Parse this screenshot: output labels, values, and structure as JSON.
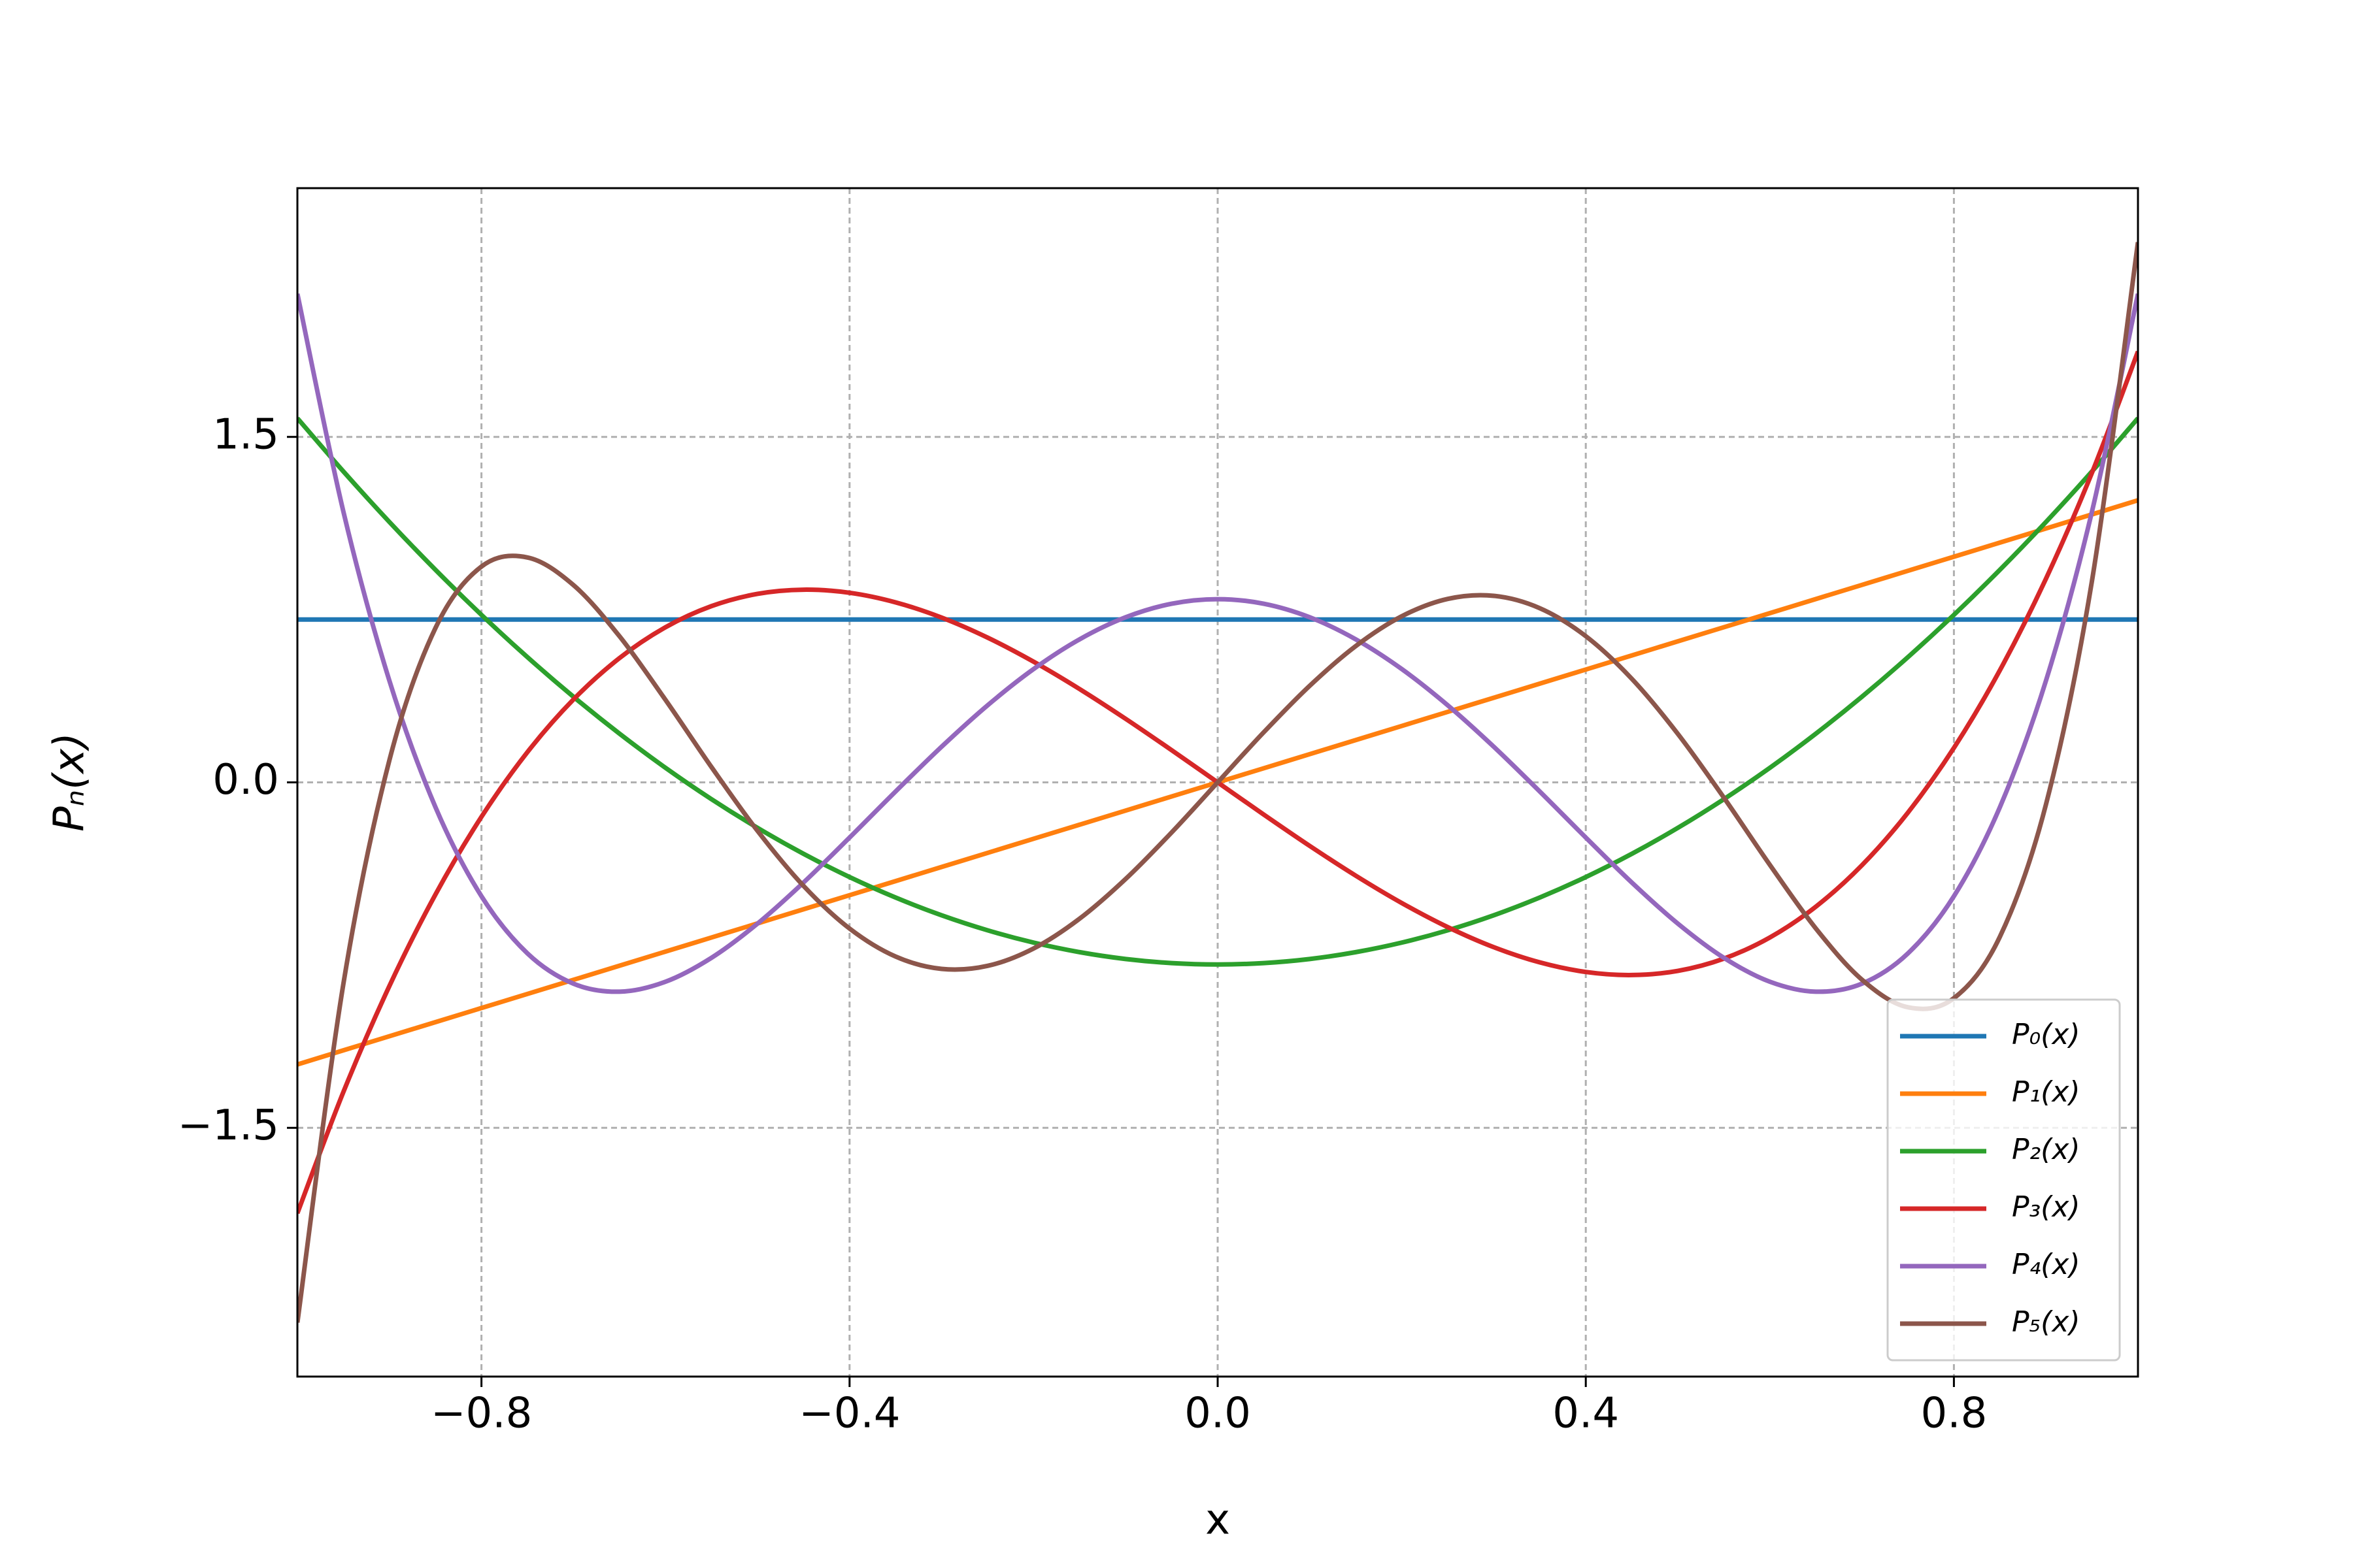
{
  "chart_data": {
    "type": "line",
    "xlabel": "x",
    "ylabel": "Pₙ(x)",
    "xlim": [
      -1,
      1
    ],
    "ylim": [
      -2.58,
      2.58
    ],
    "xticks": [
      {
        "value": -0.8,
        "label": "−0.8"
      },
      {
        "value": -0.4,
        "label": "−0.4"
      },
      {
        "value": 0,
        "label": "0.0"
      },
      {
        "value": 0.4,
        "label": "0.4"
      },
      {
        "value": 0.8,
        "label": "0.8"
      }
    ],
    "yticks": [
      {
        "value": -1.5,
        "label": "−1.5"
      },
      {
        "value": 0,
        "label": "0.0"
      },
      {
        "value": 1.5,
        "label": "1.5"
      }
    ],
    "grid": true,
    "legend": "lower right",
    "x": [
      -1,
      -0.95,
      -0.9,
      -0.85,
      -0.8,
      -0.75,
      -0.7,
      -0.65,
      -0.6,
      -0.55,
      -0.5,
      -0.45,
      -0.4,
      -0.35,
      -0.3,
      -0.25,
      -0.2,
      -0.15,
      -0.1,
      -0.05,
      0,
      0.05,
      0.1,
      0.15,
      0.2,
      0.25,
      0.3,
      0.35,
      0.4,
      0.45,
      0.5,
      0.55,
      0.6,
      0.65,
      0.7,
      0.75,
      0.8,
      0.85,
      0.9,
      0.95,
      1
    ],
    "series": [
      {
        "name": "P₀(x)",
        "color": "#1f77b4",
        "values": [
          0.7071,
          0.7071,
          0.7071,
          0.7071,
          0.7071,
          0.7071,
          0.7071,
          0.7071,
          0.7071,
          0.7071,
          0.7071,
          0.7071,
          0.7071,
          0.7071,
          0.7071,
          0.7071,
          0.7071,
          0.7071,
          0.7071,
          0.7071,
          0.7071,
          0.7071,
          0.7071,
          0.7071,
          0.7071,
          0.7071,
          0.7071,
          0.7071,
          0.7071,
          0.7071,
          0.7071,
          0.7071,
          0.7071,
          0.7071,
          0.7071,
          0.7071,
          0.7071,
          0.7071,
          0.7071,
          0.7071,
          0.7071
        ]
      },
      {
        "name": "P₁(x)",
        "color": "#ff7f0e",
        "values": [
          -1.2247,
          -1.1635,
          -1.1023,
          -1.041,
          -0.9798,
          -0.9186,
          -0.8573,
          -0.7961,
          -0.7348,
          -0.6736,
          -0.6124,
          -0.5511,
          -0.4899,
          -0.4287,
          -0.3674,
          -0.3062,
          -0.2449,
          -0.1837,
          -0.1225,
          -0.0612,
          0,
          0.0612,
          0.1225,
          0.1837,
          0.2449,
          0.3062,
          0.3674,
          0.4287,
          0.4899,
          0.5511,
          0.6124,
          0.6736,
          0.7348,
          0.7961,
          0.8573,
          0.9186,
          0.9798,
          1.041,
          1.1023,
          1.1635,
          1.2247
        ]
      },
      {
        "name": "P₂(x)",
        "color": "#2ca02c",
        "values": [
          1.5811,
          1.3499,
          1.1305,
          0.923,
          0.7273,
          0.5435,
          0.3716,
          0.2115,
          0.0632,
          -0.0731,
          -0.1976,
          -0.3103,
          -0.4111,
          -0.5,
          -0.5771,
          -0.6423,
          -0.6957,
          -0.7372,
          -0.7669,
          -0.7846,
          -0.7906,
          -0.7846,
          -0.7669,
          -0.7372,
          -0.6957,
          -0.6423,
          -0.5771,
          -0.5,
          -0.4111,
          -0.3103,
          -0.1976,
          -0.0731,
          0.0632,
          0.2115,
          0.3716,
          0.5435,
          0.7273,
          0.923,
          1.1305,
          1.3499,
          1.5811
        ]
      },
      {
        "name": "P₃(x)",
        "color": "#d62728",
        "values": [
          -1.8708,
          -1.3441,
          -0.884,
          -0.487,
          -0.1497,
          0.1315,
          0.3601,
          0.5396,
          0.6735,
          0.7653,
          0.8185,
          0.8366,
          0.8232,
          0.7816,
          0.7156,
          0.6285,
          0.5238,
          0.4051,
          0.2759,
          0.1397,
          0,
          -0.1397,
          -0.2759,
          -0.4051,
          -0.5238,
          -0.6285,
          -0.7156,
          -0.7816,
          -0.8232,
          -0.8366,
          -0.8185,
          -0.7653,
          -0.6735,
          -0.5396,
          -0.3601,
          -0.1315,
          0.1497,
          0.487,
          0.884,
          1.3441,
          1.8708
        ]
      },
      {
        "name": "P₄(x)",
        "color": "#9467bd",
        "values": [
          2.1213,
          1.1754,
          0.4411,
          -0.1073,
          -0.4943,
          -0.7427,
          -0.8741,
          -0.9088,
          -0.8655,
          -0.7616,
          -0.6132,
          -0.4348,
          -0.2397,
          -0.0397,
          0.1547,
          0.3346,
          0.4921,
          0.6212,
          0.7169,
          0.7757,
          0.7955,
          0.7757,
          0.7169,
          0.6212,
          0.4921,
          0.3346,
          0.1547,
          -0.0397,
          -0.2397,
          -0.4348,
          -0.6132,
          -0.7616,
          -0.8655,
          -0.9088,
          -0.8741,
          -0.7427,
          -0.4943,
          -0.1073,
          0.4411,
          1.1754,
          2.1213
        ]
      },
      {
        "name": "P₅(x)",
        "color": "#8c564b",
        "values": [
          -2.3452,
          -0.8742,
          0.0965,
          0.67,
          0.937,
          0.9765,
          0.8565,
          0.6344,
          0.358,
          0.0661,
          -0.2107,
          -0.4496,
          -0.6347,
          -0.7562,
          -0.81,
          -0.7967,
          -0.7212,
          -0.5917,
          -0.4194,
          -0.2173,
          0,
          0.2173,
          0.4194,
          0.5917,
          0.7212,
          0.7967,
          0.81,
          0.7562,
          0.6347,
          0.4496,
          0.2107,
          -0.0661,
          -0.358,
          -0.6344,
          -0.8565,
          -0.9765,
          -0.937,
          -0.67,
          -0.0965,
          0.8742,
          2.3452
        ]
      }
    ]
  }
}
